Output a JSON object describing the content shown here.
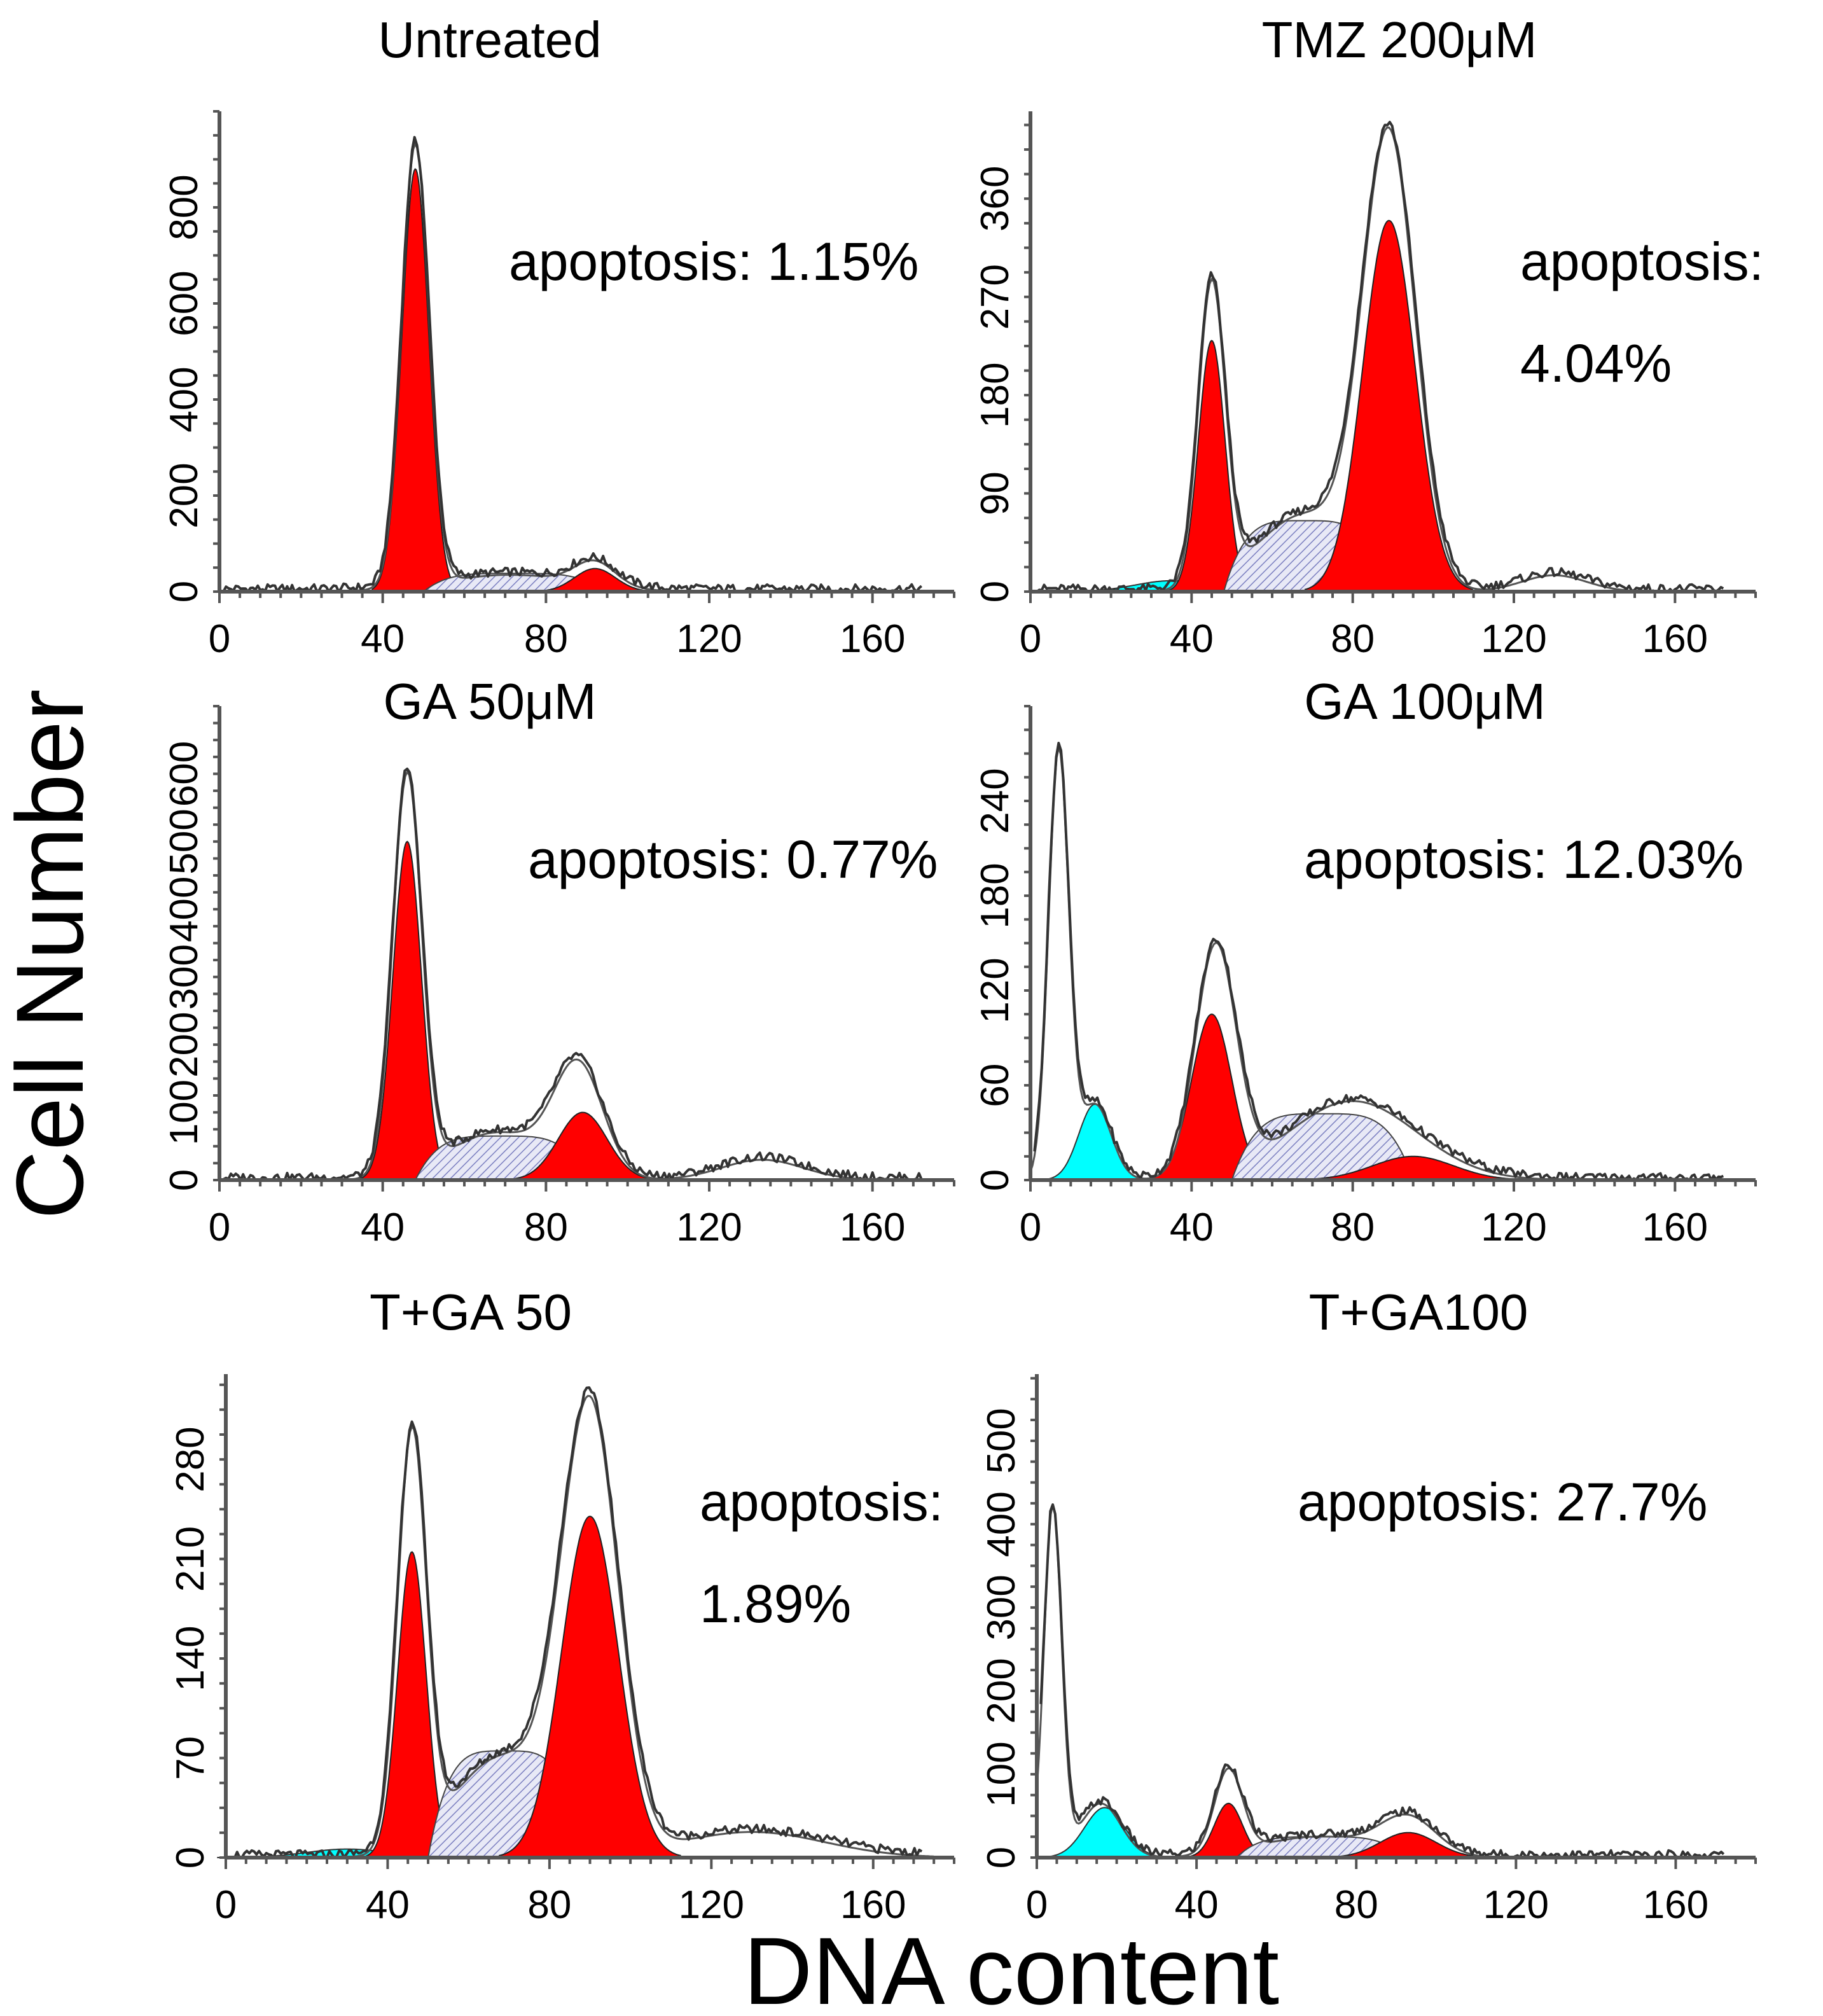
{
  "chart_data": {
    "type": "histogram-grid",
    "ylabel": "Cell Number",
    "xlabel": "DNA content",
    "panels": [
      {
        "title": "Untreated",
        "annotation_lines": [
          "apoptosis: 1.15%"
        ],
        "xticks": [
          0,
          40,
          80,
          120,
          160
        ],
        "xlim": [
          0,
          180
        ],
        "yticks": [
          0,
          200,
          400,
          600,
          800
        ],
        "ylim": [
          0,
          1000
        ],
        "components": [
          {
            "kind": "red",
            "mu": 48,
            "sigma": 3.3,
            "amp": 880
          },
          {
            "kind": "hatch",
            "from": 50,
            "to": 94,
            "amp": 38
          },
          {
            "kind": "red",
            "mu": 92,
            "sigma": 5,
            "amp": 48
          }
        ],
        "outline_peaks": [
          {
            "mu": 48,
            "sigma": 3.3,
            "amp": 920
          },
          {
            "mu": 71,
            "sigma": 16,
            "amp": 35
          },
          {
            "mu": 92,
            "sigma": 5,
            "amp": 50
          }
        ],
        "apoptosis_percent": 1.15
      },
      {
        "title": "TMZ 200μM",
        "annotation_lines": [
          "apoptosis:",
          "4.04%"
        ],
        "xticks": [
          0,
          40,
          80,
          120,
          160
        ],
        "xlim": [
          0,
          180
        ],
        "yticks": [
          0,
          90,
          180,
          270,
          360
        ],
        "ylim": [
          0,
          440
        ],
        "components": [
          {
            "kind": "cyan",
            "mu": 35,
            "sigma": 9,
            "amp": 10
          },
          {
            "kind": "red",
            "mu": 45,
            "sigma": 3.3,
            "amp": 230
          },
          {
            "kind": "hatch",
            "from": 48,
            "to": 88,
            "amp": 65
          },
          {
            "kind": "red",
            "mu": 89,
            "sigma": 6.5,
            "amp": 340
          }
        ],
        "outline_peaks": [
          {
            "mu": 45,
            "sigma": 3.3,
            "amp": 275
          },
          {
            "mu": 68,
            "sigma": 12,
            "amp": 70
          },
          {
            "mu": 89,
            "sigma": 6.5,
            "amp": 410
          },
          {
            "mu": 130,
            "sigma": 8,
            "amp": 15
          }
        ],
        "apoptosis_percent": 4.04
      },
      {
        "title": "GA 50μM",
        "annotation_lines": [
          "apoptosis: 0.77%"
        ],
        "xticks": [
          0,
          40,
          80,
          120,
          160
        ],
        "xlim": [
          0,
          180
        ],
        "yticks": [
          0,
          100,
          200,
          300,
          400,
          500,
          600
        ],
        "ylim": [
          0,
          700
        ],
        "components": [
          {
            "kind": "red",
            "mu": 46,
            "sigma": 3.5,
            "amp": 500
          },
          {
            "kind": "hatch",
            "from": 48,
            "to": 90,
            "amp": 65
          },
          {
            "kind": "red",
            "mu": 89,
            "sigma": 6,
            "amp": 100
          }
        ],
        "outline_peaks": [
          {
            "mu": 46,
            "sigma": 3.5,
            "amp": 590
          },
          {
            "mu": 68,
            "sigma": 12,
            "amp": 70
          },
          {
            "mu": 88,
            "sigma": 6,
            "amp": 160
          },
          {
            "mu": 133,
            "sigma": 10,
            "amp": 30
          }
        ],
        "apoptosis_percent": 0.77
      },
      {
        "title": "GA 100μM",
        "annotation_lines": [
          "apoptosis: 12.03%"
        ],
        "xticks": [
          0,
          40,
          80,
          120,
          160
        ],
        "xlim": [
          0,
          180
        ],
        "yticks": [
          0,
          60,
          120,
          180,
          240
        ],
        "ylim": [
          0,
          300
        ],
        "components": [
          {
            "kind": "cyan",
            "mu": 16,
            "sigma": 4,
            "amp": 48
          },
          {
            "kind": "red",
            "mu": 45,
            "sigma": 5,
            "amp": 105
          },
          {
            "kind": "hatch",
            "from": 50,
            "to": 95,
            "amp": 42
          },
          {
            "kind": "red",
            "mu": 95,
            "sigma": 10,
            "amp": 15
          }
        ],
        "outline_peaks": [
          {
            "mu": 7,
            "sigma": 2.5,
            "amp": 270
          },
          {
            "mu": 16,
            "sigma": 4,
            "amp": 48
          },
          {
            "mu": 46,
            "sigma": 5,
            "amp": 145
          },
          {
            "mu": 80,
            "sigma": 16,
            "amp": 50
          }
        ],
        "apoptosis_percent": 12.03
      },
      {
        "title": "T+GA 50",
        "annotation_lines": [
          "apoptosis:",
          "1.89%"
        ],
        "xticks": [
          0,
          40,
          80,
          120,
          160
        ],
        "xlim": [
          0,
          180
        ],
        "yticks": [
          0,
          70,
          140,
          210,
          280
        ],
        "ylim": [
          0,
          340
        ],
        "components": [
          {
            "kind": "cyan",
            "mu": 30,
            "sigma": 10,
            "amp": 6
          },
          {
            "kind": "red",
            "mu": 46,
            "sigma": 3.5,
            "amp": 215
          },
          {
            "kind": "hatch",
            "from": 50,
            "to": 88,
            "amp": 75
          },
          {
            "kind": "red",
            "mu": 90,
            "sigma": 7,
            "amp": 240
          }
        ],
        "outline_peaks": [
          {
            "mu": 46,
            "sigma": 3.5,
            "amp": 290
          },
          {
            "mu": 68,
            "sigma": 12,
            "amp": 70
          },
          {
            "mu": 90,
            "sigma": 7,
            "amp": 310
          },
          {
            "mu": 130,
            "sigma": 18,
            "amp": 18
          }
        ],
        "apoptosis_percent": 1.89
      },
      {
        "title": "T+GA100",
        "annotation_lines": [
          "apoptosis: 27.7%"
        ],
        "xticks": [
          0,
          40,
          80,
          120,
          160
        ],
        "xlim": [
          0,
          180
        ],
        "yticks": [
          0,
          100,
          200,
          300,
          400,
          500
        ],
        "ylim": [
          0,
          580
        ],
        "components": [
          {
            "kind": "cyan",
            "mu": 17,
            "sigma": 5,
            "amp": 60
          },
          {
            "kind": "red",
            "mu": 48,
            "sigma": 3.5,
            "amp": 65
          },
          {
            "kind": "hatch",
            "from": 50,
            "to": 92,
            "amp": 25
          },
          {
            "kind": "red",
            "mu": 93,
            "sigma": 7,
            "amp": 30
          }
        ],
        "outline_peaks": [
          {
            "mu": 4,
            "sigma": 2.2,
            "amp": 420
          },
          {
            "mu": 16,
            "sigma": 5,
            "amp": 65
          },
          {
            "mu": 48,
            "sigma": 3.5,
            "amp": 100
          },
          {
            "mu": 70,
            "sigma": 14,
            "amp": 25
          },
          {
            "mu": 93,
            "sigma": 7,
            "amp": 45
          }
        ],
        "apoptosis_percent": 27.7
      }
    ]
  }
}
